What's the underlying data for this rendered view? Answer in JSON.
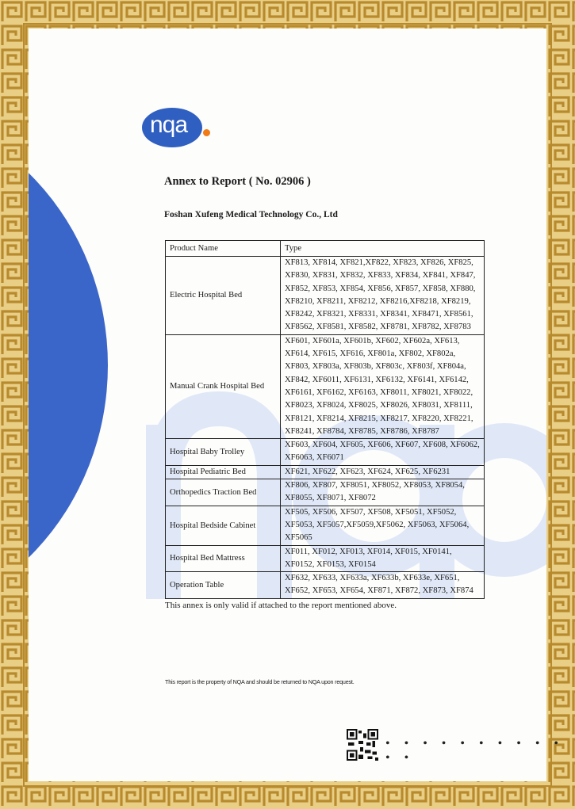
{
  "logo": {
    "text": "nqa",
    "brand_color": "#2f5fc0",
    "dot_color": "#f07a18"
  },
  "border_color": "#c9a24a",
  "title": "Annex to Report ( No. 02906 )",
  "company": "Foshan Xufeng Medical Technology Co., Ltd",
  "table": {
    "headers": [
      "Product Name",
      "Type"
    ],
    "rows": [
      {
        "name": "Electric Hospital Bed",
        "types": [
          "XF813, XF814, XF821,XF822, XF823, XF826, XF825,",
          "XF830, XF831, XF832, XF833, XF834, XF841, XF847,",
          "XF852, XF853, XF854, XF856, XF857, XF858, XF880,",
          "XF8210, XF8211, XF8212, XF8216,XF8218, XF8219,",
          "XF8242, XF8321, XF8331, XF8341, XF8471, XF8561,",
          "XF8562, XF8581, XF8582, XF8781, XF8782, XF8783"
        ]
      },
      {
        "name": "Manual Crank Hospital Bed",
        "types": [
          "XF601, XF601a, XF601b, XF602, XF602a, XF613,",
          "XF614, XF615, XF616, XF801a, XF802, XF802a,",
          "XF803, XF803a, XF803b, XF803c, XF803f, XF804a,",
          "XF842, XF6011, XF6131, XF6132, XF6141, XF6142,",
          "XF6161, XF6162, XF6163, XF8011, XF8021, XF8022,",
          "XF8023, XF8024, XF8025, XF8026, XF8031, XF8111,",
          "XF8121, XF8214, XF8215, XF8217, XF8220, XF8221,",
          "XF8241, XF8784, XF8785, XF8786, XF8787"
        ]
      },
      {
        "name": "Hospital Baby Trolley",
        "types": [
          "XF603, XF604, XF605, XF606, XF607, XF608, XF6062,",
          "XF6063, XF6071"
        ]
      },
      {
        "name": "Hospital Pediatric Bed",
        "types": [
          "XF621, XF622, XF623, XF624, XF625, XF6231"
        ]
      },
      {
        "name": "Orthopedics Traction Bed",
        "types": [
          "XF806, XF807, XF8051, XF8052, XF8053, XF8054,",
          "XF8055, XF8071, XF8072"
        ]
      },
      {
        "name": "Hospital Bedside Cabinet",
        "types": [
          "XF505, XF506, XF507, XF508, XF5051, XF5052,",
          "XF5053, XF5057,XF5059,XF5062, XF5063, XF5064,",
          "XF5065"
        ]
      },
      {
        "name": "Hospital Bed Mattress",
        "types": [
          "XF011, XF012, XF013, XF014, XF015, XF0141,",
          "XF0152, XF0153, XF0154"
        ]
      },
      {
        "name": "Operation Table",
        "types": [
          "XF632, XF633, XF633a, XF633b, XF633e, XF651,",
          "XF652, XF653, XF654, XF871, XF872, XF873, XF874"
        ]
      }
    ]
  },
  "note": "This annex is only valid if attached to the report mentioned above.",
  "property_notice": "This report is the property of NQA and should be returned to NQA upon request.",
  "dots": "• • • • • • • • • • • •"
}
